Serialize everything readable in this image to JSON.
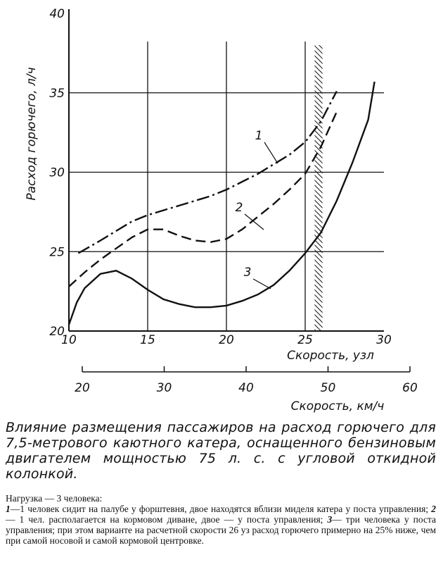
{
  "chart_data": {
    "type": "line",
    "ylabel": "Расход горючего, л/ч",
    "xlabel": "Скорость, узл",
    "x2label": "Скорость, км/ч",
    "xlim": [
      10,
      30
    ],
    "xticks": [
      10,
      15,
      20,
      25,
      30
    ],
    "ylim": [
      20,
      40
    ],
    "yticks": [
      20,
      25,
      30,
      35,
      40
    ],
    "x2lim": [
      20,
      60
    ],
    "x2ticks": [
      20,
      30,
      40,
      50,
      60
    ],
    "grid": true,
    "hatch_x": [
      25.6,
      26.1
    ],
    "hatch_top": 38,
    "series": [
      {
        "name": "1",
        "color": "#111",
        "style": "dash-dot",
        "x": [
          10.6,
          12,
          13,
          14,
          15,
          16,
          17,
          18,
          19,
          20,
          21,
          22,
          23,
          24,
          25,
          26,
          27
        ],
        "values": [
          24.9,
          25.7,
          26.3,
          26.9,
          27.3,
          27.6,
          27.9,
          28.2,
          28.5,
          28.9,
          29.4,
          29.9,
          30.5,
          31.1,
          31.9,
          33.2,
          35.1
        ]
      },
      {
        "name": "2",
        "color": "#111",
        "style": "dash",
        "x": [
          10,
          11,
          12,
          13,
          14,
          15,
          16,
          17,
          18,
          19,
          20,
          21,
          22,
          23,
          24,
          25,
          26,
          27
        ],
        "values": [
          22.8,
          23.7,
          24.5,
          25.2,
          25.9,
          26.4,
          26.4,
          26.0,
          25.7,
          25.6,
          25.8,
          26.4,
          27.2,
          28.0,
          28.9,
          29.9,
          31.6,
          33.8
        ]
      },
      {
        "name": "3",
        "color": "#111",
        "style": "solid",
        "x": [
          10,
          10.5,
          11,
          12,
          13,
          14,
          15,
          16,
          17,
          18,
          19,
          20,
          21,
          22,
          23,
          24,
          25,
          26,
          27,
          28,
          29,
          29.4
        ],
        "values": [
          20.4,
          21.8,
          22.7,
          23.6,
          23.8,
          23.3,
          22.6,
          22.0,
          21.7,
          21.5,
          21.5,
          21.6,
          21.9,
          22.3,
          22.9,
          23.8,
          24.9,
          26.2,
          28.2,
          30.6,
          33.3,
          35.7
        ]
      }
    ]
  },
  "caption": "Влияние размещения пассажиров на расход горючего для 7,5-метрового каютного катера, оснащенного бензиновым двигателем мощностью 75 л. с. с угловой откидной колонкой.",
  "note": {
    "heading": "Нагрузка — 3 человека:",
    "items": [
      {
        "number": "1",
        "text": "—1 человек сидит на палубе у форштевня, двое находятся вблизи миделя катера у поста управления;"
      },
      {
        "number": "2",
        "text": "— 1 чел. располагается на кормовом диване, двое — у поста управления;"
      },
      {
        "number": "3",
        "text": "— три человека у поста управления; при этом варианте на расчетной скорости 26 уз расход горючего примерно на 25% ниже, чем при самой носовой и самой кормовой центровке."
      }
    ]
  }
}
